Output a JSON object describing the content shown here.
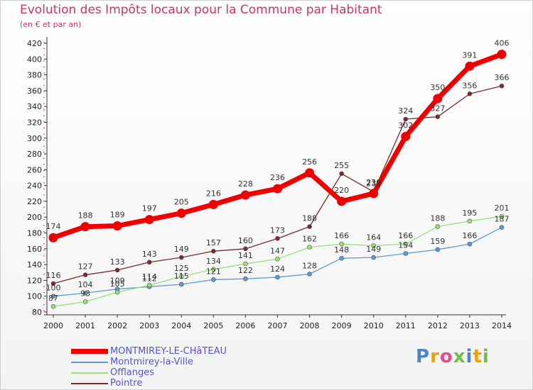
{
  "chart_data": {
    "type": "line",
    "title": "Evolution des Impôts locaux pour la Commune par Habitant",
    "subtitle": "(en € et par an)",
    "x": [
      2000,
      2001,
      2002,
      2003,
      2004,
      2005,
      2006,
      2007,
      2008,
      2009,
      2010,
      2011,
      2012,
      2013,
      2014
    ],
    "x_tick_labels": [
      "2000",
      "2001",
      "2002",
      "2003",
      "2004",
      "2005",
      "2006",
      "2007",
      "2008",
      "2009",
      "2010",
      "2011",
      "2012",
      "2013",
      "2014"
    ],
    "y_ticks": [
      80,
      100,
      120,
      140,
      160,
      180,
      200,
      220,
      240,
      260,
      280,
      300,
      320,
      340,
      360,
      380,
      400,
      420
    ],
    "ylim": [
      80,
      420
    ],
    "grid": false,
    "series": [
      {
        "name": "MONTMIREY-LE-CHâTEAU",
        "color": "#ee0000",
        "values": [
          174,
          188,
          189,
          197,
          205,
          216,
          228,
          236,
          256,
          220,
          230,
          302,
          350,
          391,
          406
        ],
        "labels": [
          "174",
          "188",
          "189",
          "197",
          "205",
          "216",
          "228",
          "236",
          "256",
          "220",
          "230",
          "302",
          "350",
          "391",
          "406"
        ]
      },
      {
        "name": "Montmirey-la-Ville",
        "color": "#5b9bd5",
        "values": [
          100,
          104,
          109,
          112,
          115,
          121,
          122,
          124,
          128,
          148,
          149,
          154,
          159,
          166,
          187
        ],
        "labels": [
          "100",
          "104",
          "109",
          "112",
          "115",
          "121",
          "122",
          "124",
          "128",
          "148",
          "149",
          "154",
          "159",
          "166",
          "187"
        ]
      },
      {
        "name": "Offlanges",
        "color": "#99e07a",
        "values": [
          87,
          93,
          105,
          114,
          125,
          134,
          141,
          147,
          162,
          166,
          164,
          166,
          188,
          195,
          201
        ],
        "labels": [
          "87",
          "93",
          "105",
          "114",
          "125",
          "134",
          "141",
          "147",
          "162",
          "166",
          "164",
          "166",
          "188",
          "195",
          "201"
        ]
      },
      {
        "name": "Pointre",
        "color": "#7a2a2a",
        "values": [
          116,
          127,
          133,
          143,
          149,
          157,
          160,
          173,
          188,
          255,
          232,
          324,
          327,
          356,
          366
        ],
        "labels": [
          "116",
          "127",
          "133",
          "143",
          "149",
          "157",
          "160",
          "173",
          "188",
          "255",
          "232",
          "324",
          "327",
          "356",
          "366"
        ]
      }
    ]
  },
  "legend": {
    "items": [
      {
        "label": "MONTMIREY-LE-CHâTEAU",
        "color": "#ee0000"
      },
      {
        "label": "Montmirey-la-Ville",
        "color": "#5b9bd5"
      },
      {
        "label": "Offlanges",
        "color": "#99e07a"
      },
      {
        "label": "Pointre",
        "color": "#7a2a2a"
      }
    ]
  },
  "brand": {
    "logo_text": "Proxiti",
    "colors": [
      "#4a86c8",
      "#f0a000",
      "#e84c8b",
      "#6cc04a",
      "#4a86c8",
      "#f0a000",
      "#6cc04a"
    ]
  }
}
